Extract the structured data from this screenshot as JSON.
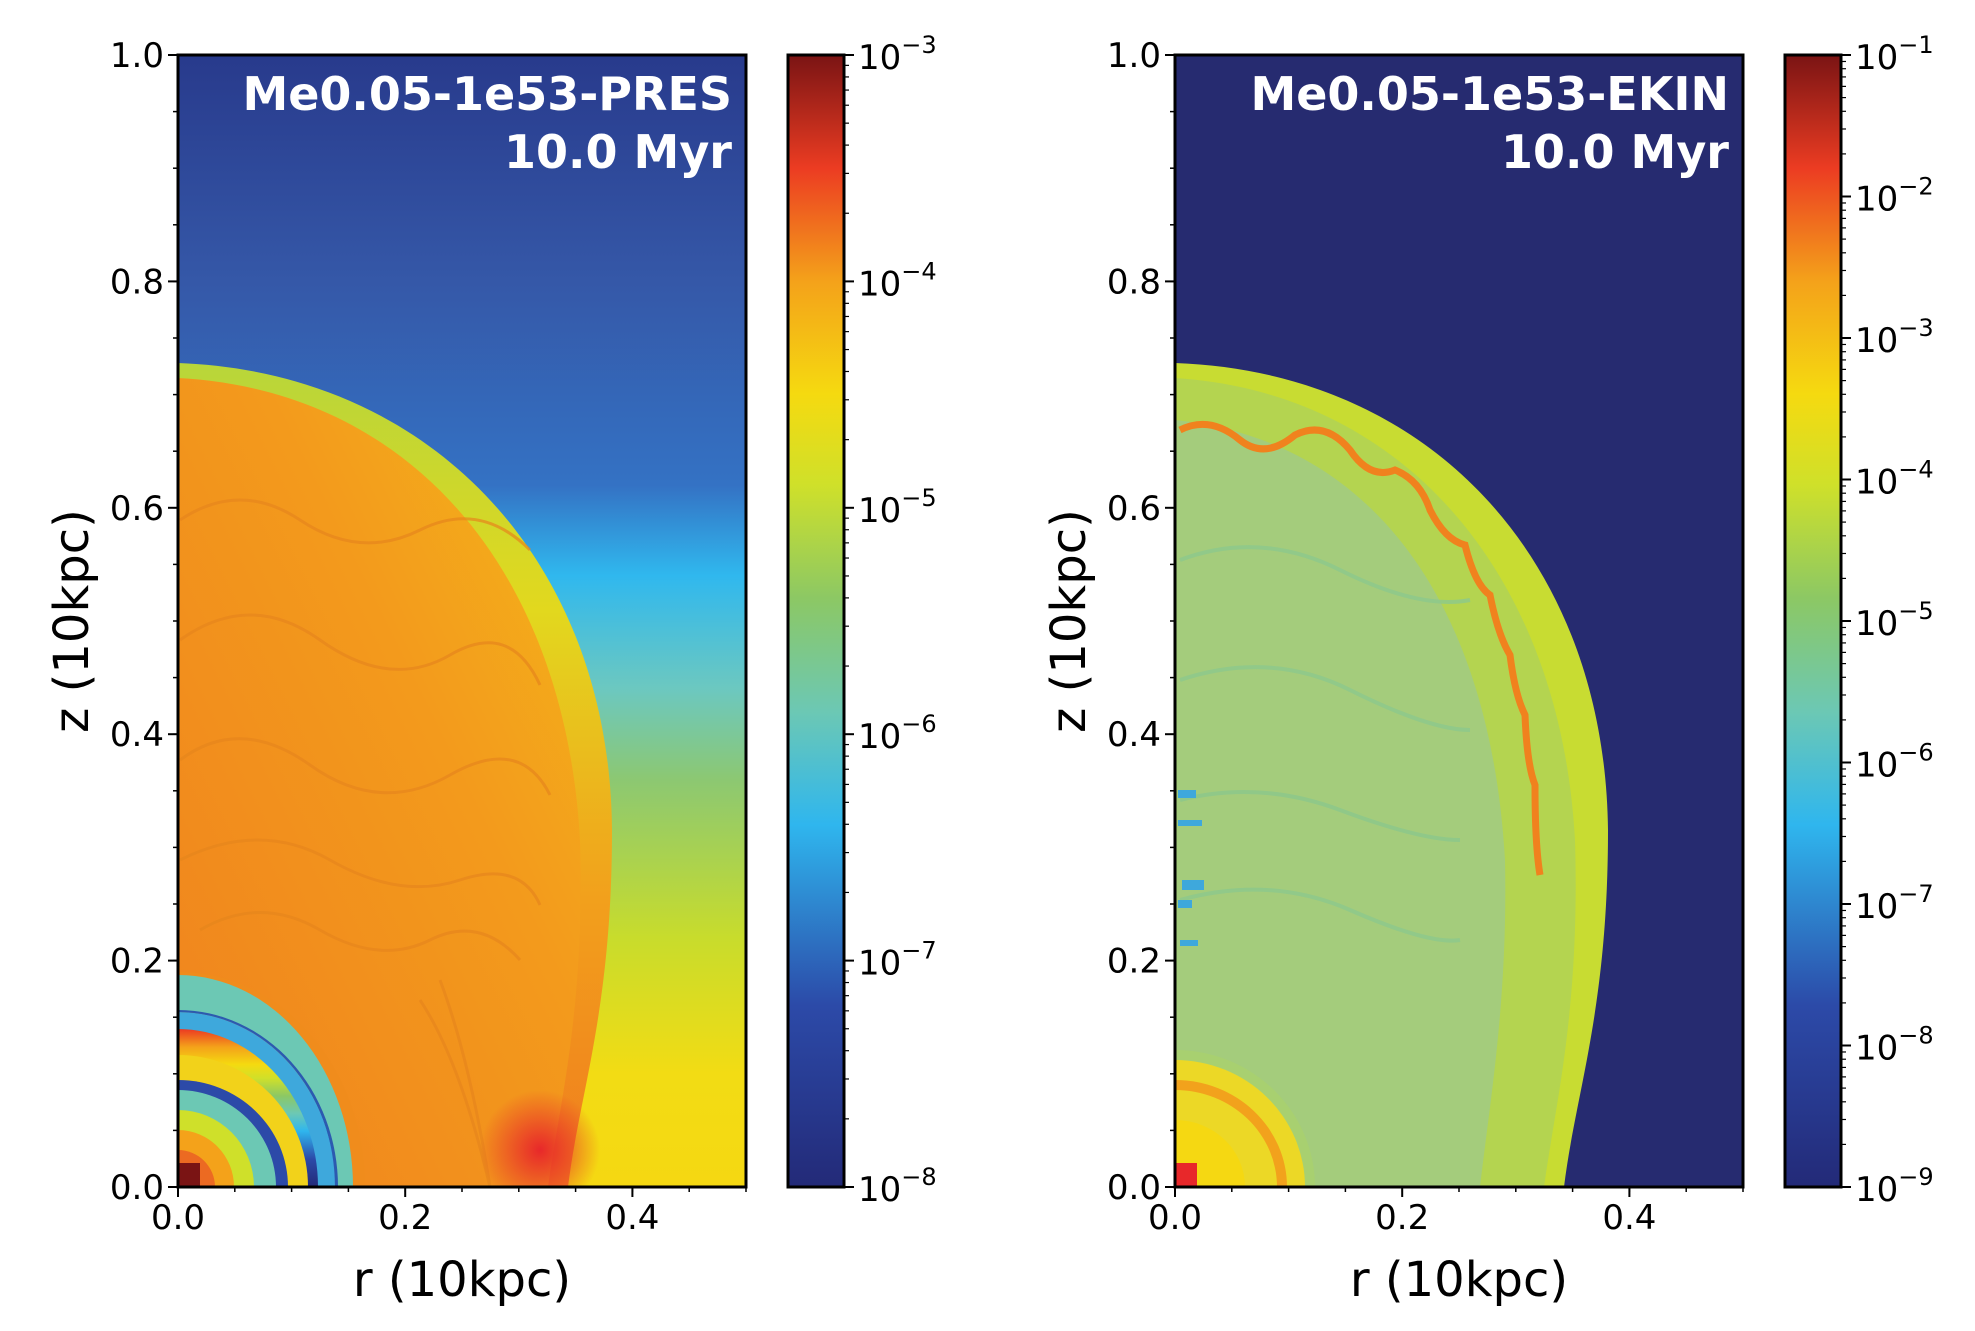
{
  "chart_data": [
    {
      "type": "heatmap",
      "title_lines": [
        "Me0.05-1e53-PRES",
        "10.0 Myr"
      ],
      "xlabel": "r (10kpc)",
      "ylabel": "z (10kpc)",
      "xlim": [
        0.0,
        0.5
      ],
      "ylim": [
        0.0,
        1.0
      ],
      "xticks": [
        "0.0",
        "0.2",
        "0.4"
      ],
      "yticks": [
        "0.0",
        "0.2",
        "0.4",
        "0.6",
        "0.8",
        "1.0"
      ],
      "colorbar": {
        "scale": "log",
        "min": 1e-08,
        "max": 0.001,
        "tick_labels": [
          {
            "base": "10",
            "exp": "−8"
          },
          {
            "base": "10",
            "exp": "−7"
          },
          {
            "base": "10",
            "exp": "−6"
          },
          {
            "base": "10",
            "exp": "−5"
          },
          {
            "base": "10",
            "exp": "−4"
          },
          {
            "base": "10",
            "exp": "−3"
          }
        ]
      },
      "colors": {
        "background_top": "#283a8c",
        "shocked_shell": "#d2e01e",
        "bubble_interior": "#f08c1c"
      }
    },
    {
      "type": "heatmap",
      "title_lines": [
        "Me0.05-1e53-EKIN",
        "10.0 Myr"
      ],
      "xlabel": "r (10kpc)",
      "ylabel": "z (10kpc)",
      "xlim": [
        0.0,
        0.5
      ],
      "ylim": [
        0.0,
        1.0
      ],
      "xticks": [
        "0.0",
        "0.2",
        "0.4"
      ],
      "yticks": [
        "0.0",
        "0.2",
        "0.4",
        "0.6",
        "0.8",
        "1.0"
      ],
      "colorbar": {
        "scale": "log",
        "min": 1e-09,
        "max": 0.1,
        "tick_labels": [
          {
            "base": "10",
            "exp": "−9"
          },
          {
            "base": "10",
            "exp": "−8"
          },
          {
            "base": "10",
            "exp": "−7"
          },
          {
            "base": "10",
            "exp": "−6"
          },
          {
            "base": "10",
            "exp": "−5"
          },
          {
            "base": "10",
            "exp": "−4"
          },
          {
            "base": "10",
            "exp": "−3"
          },
          {
            "base": "10",
            "exp": "−2"
          },
          {
            "base": "10",
            "exp": "−1"
          }
        ]
      },
      "colors": {
        "background": "#262b70",
        "shell": "#c8dc32",
        "interior": "#a8d070",
        "front_ripples": "#f0821e"
      }
    }
  ]
}
